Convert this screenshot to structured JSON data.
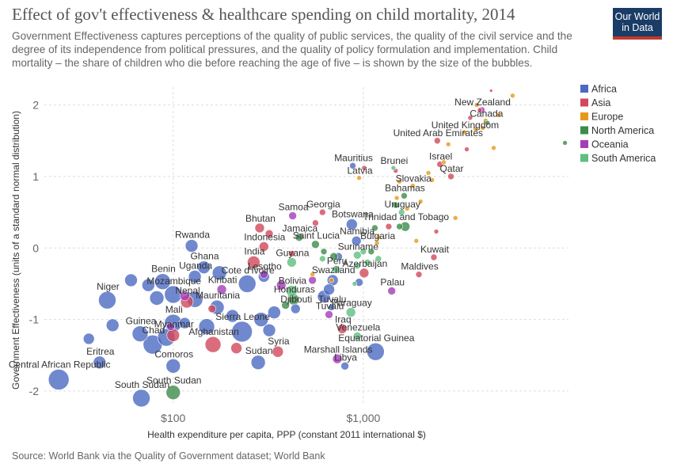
{
  "title": "Effect of gov't effectiveness & healthcare spending on child mortality, 2014",
  "subtitle": "Government Effectiveness captures perceptions of the quality of public services, the quality of the civil service and the degree of its independence from political pressures, and the quality of policy formulation and implementation. Child mortality – the share of children who die before reaching the age of five – is shown by the size of the bubbles.",
  "logo": {
    "line1": "Our World",
    "line2": "in Data"
  },
  "source": "Source: World Bank via the Quality of Government dataset; World Bank",
  "chart_data": {
    "type": "scatter",
    "title": "Effect of gov't effectiveness & healthcare spending on child mortality, 2014",
    "xlabel": "Health expenditure per capita, PPP (constant 2011 international $)",
    "ylabel": "Government Effectiveness (units of a standard normal distribution)",
    "x_scale": "log",
    "xlim": [
      21,
      12000
    ],
    "ylim": [
      -2.2,
      2.25
    ],
    "x_ticks": [
      {
        "value": 100,
        "label": "$100"
      },
      {
        "value": 1000,
        "label": "$1,000"
      }
    ],
    "y_ticks": [
      {
        "value": 2,
        "label": "2"
      },
      {
        "value": 1,
        "label": "1"
      },
      {
        "value": 0,
        "label": "0"
      },
      {
        "value": -1,
        "label": "-1"
      },
      {
        "value": -2,
        "label": "-2"
      }
    ],
    "grid": true,
    "legend_position": "right",
    "colors": {
      "Africa": "#4c6ac2",
      "Asia": "#d1495b",
      "Europe": "#e69a1a",
      "North America": "#3d8b4b",
      "Oceania": "#a43cb8",
      "South America": "#5fbf7f"
    },
    "series": [
      {
        "name": "Africa",
        "points": [
          {
            "label": "Central African Republic",
            "x": 25,
            "y": -1.84,
            "size": 13
          },
          {
            "label": "South Sudan",
            "x": 68,
            "y": -2.1,
            "size": 11
          },
          {
            "label": "Eritrea",
            "x": 41,
            "y": -1.6,
            "size": 8
          },
          {
            "label": "Comoros",
            "x": 100,
            "y": -1.65,
            "size": 9
          },
          {
            "label": "Chad",
            "x": 78,
            "y": -1.35,
            "size": 12
          },
          {
            "label": "Guinea",
            "x": 67,
            "y": -1.2,
            "size": 10
          },
          {
            "label": "Mali",
            "x": 100,
            "y": -1.05,
            "size": 11
          },
          {
            "label": "Niger",
            "x": 45,
            "y": -0.73,
            "size": 11
          },
          {
            "label": "Benin",
            "x": 88,
            "y": -0.47,
            "size": 10
          },
          {
            "label": "Mozambique",
            "x": 100,
            "y": -0.65,
            "size": 11
          },
          {
            "label": "Rwanda",
            "x": 125,
            "y": 0.03,
            "size": 8
          },
          {
            "label": "Ghana",
            "x": 145,
            "y": -0.27,
            "size": 8
          },
          {
            "label": "Uganda",
            "x": 130,
            "y": -0.4,
            "size": 8
          },
          {
            "label": "Mauritania",
            "x": 170,
            "y": -0.83,
            "size": 9
          },
          {
            "label": "Sierra Leone",
            "x": 230,
            "y": -1.17,
            "size": 13
          },
          {
            "label": "Sudan",
            "x": 280,
            "y": -1.6,
            "size": 9
          },
          {
            "label": "Cote d'Ivoire",
            "x": 245,
            "y": -0.5,
            "size": 11
          },
          {
            "label": "Lesotho",
            "x": 300,
            "y": -0.4,
            "size": 7
          },
          {
            "label": "Djibouti",
            "x": 440,
            "y": -0.85,
            "size": 6
          },
          {
            "label": "Swaziland",
            "x": 690,
            "y": -0.45,
            "size": 7
          },
          {
            "label": "Tuvalu",
            "x": 680,
            "y": -0.83,
            "size": 4
          },
          {
            "label": "Equatorial Guinea",
            "x": 1160,
            "y": -1.45,
            "size": 11
          },
          {
            "label": "Libya",
            "x": 800,
            "y": -1.65,
            "size": 5
          },
          {
            "label": "Botswana",
            "x": 870,
            "y": 0.33,
            "size": 7
          },
          {
            "label": "Namibia",
            "x": 920,
            "y": 0.1,
            "size": 6
          },
          {
            "label": "Mauritius",
            "x": 880,
            "y": 1.15,
            "size": 4
          },
          {
            "label": "",
            "x": 36,
            "y": -1.27,
            "size": 7
          },
          {
            "label": "",
            "x": 48,
            "y": -1.08,
            "size": 8
          },
          {
            "label": "",
            "x": 60,
            "y": -0.45,
            "size": 8
          },
          {
            "label": "",
            "x": 74,
            "y": -0.52,
            "size": 8
          },
          {
            "label": "",
            "x": 82,
            "y": -0.7,
            "size": 9
          },
          {
            "label": "",
            "x": 92,
            "y": -1.25,
            "size": 11
          },
          {
            "label": "",
            "x": 115,
            "y": -1.05,
            "size": 7
          },
          {
            "label": "",
            "x": 150,
            "y": -1.1,
            "size": 10
          },
          {
            "label": "",
            "x": 205,
            "y": -0.95,
            "size": 8
          },
          {
            "label": "",
            "x": 320,
            "y": -1.15,
            "size": 8
          },
          {
            "label": "",
            "x": 130,
            "y": -0.72,
            "size": 10
          },
          {
            "label": "",
            "x": 175,
            "y": -0.35,
            "size": 9
          },
          {
            "label": "",
            "x": 290,
            "y": -1.0,
            "size": 9
          },
          {
            "label": "",
            "x": 340,
            "y": -0.9,
            "size": 8
          },
          {
            "label": "",
            "x": 620,
            "y": -0.68,
            "size": 8
          },
          {
            "label": "",
            "x": 660,
            "y": -0.58,
            "size": 7
          },
          {
            "label": "",
            "x": 740,
            "y": -0.12,
            "size": 5
          },
          {
            "label": "",
            "x": 950,
            "y": -0.48,
            "size": 5
          }
        ]
      },
      {
        "name": "Asia",
        "points": [
          {
            "label": "Myanmar",
            "x": 100,
            "y": -1.22,
            "size": 8
          },
          {
            "label": "Nepal",
            "x": 118,
            "y": -0.75,
            "size": 8
          },
          {
            "label": "Afghanistan",
            "x": 162,
            "y": -1.35,
            "size": 10
          },
          {
            "label": "Syria",
            "x": 355,
            "y": -1.45,
            "size": 7
          },
          {
            "label": "Iraq",
            "x": 775,
            "y": -1.13,
            "size": 6
          },
          {
            "label": "India",
            "x": 265,
            "y": -0.2,
            "size": 8
          },
          {
            "label": "Bhutan",
            "x": 285,
            "y": 0.28,
            "size": 6
          },
          {
            "label": "Indonesia",
            "x": 300,
            "y": 0.02,
            "size": 6
          },
          {
            "label": "Georgia",
            "x": 610,
            "y": 0.5,
            "size": 4
          },
          {
            "label": "Azerbaijan",
            "x": 1010,
            "y": -0.35,
            "size": 6
          },
          {
            "label": "Kuwait",
            "x": 2350,
            "y": -0.13,
            "size": 4
          },
          {
            "label": "Maldives",
            "x": 1960,
            "y": -0.37,
            "size": 4
          },
          {
            "label": "Qatar",
            "x": 2890,
            "y": 1.0,
            "size": 4
          },
          {
            "label": "Israel",
            "x": 2530,
            "y": 1.17,
            "size": 4
          },
          {
            "label": "United Arab Emirates",
            "x": 2450,
            "y": 1.5,
            "size": 4
          },
          {
            "label": "",
            "x": 215,
            "y": -1.4,
            "size": 7
          },
          {
            "label": "",
            "x": 160,
            "y": -0.85,
            "size": 5
          },
          {
            "label": "",
            "x": 320,
            "y": 0.2,
            "size": 5
          },
          {
            "label": "",
            "x": 420,
            "y": -0.08,
            "size": 4
          },
          {
            "label": "",
            "x": 560,
            "y": 0.35,
            "size": 4
          },
          {
            "label": "",
            "x": 1360,
            "y": 0.3,
            "size": 4
          },
          {
            "label": "",
            "x": 2420,
            "y": 0.23,
            "size": 3
          },
          {
            "label": "",
            "x": 1010,
            "y": 1.12,
            "size": 3
          },
          {
            "label": "",
            "x": 1480,
            "y": 1.08,
            "size": 3
          },
          {
            "label": "",
            "x": 3650,
            "y": 1.82,
            "size": 3
          },
          {
            "label": "",
            "x": 4100,
            "y": 1.93,
            "size": 3
          },
          {
            "label": "",
            "x": 4700,
            "y": 2.2,
            "size": 2
          },
          {
            "label": "",
            "x": 3500,
            "y": 1.38,
            "size": 3
          }
        ]
      },
      {
        "name": "Europe",
        "points": [
          {
            "label": "Latvia",
            "x": 950,
            "y": 0.98,
            "size": 3
          },
          {
            "label": "Slovakia",
            "x": 1820,
            "y": 0.87,
            "size": 3
          },
          {
            "label": "Bulgaria",
            "x": 1180,
            "y": 0.07,
            "size": 3
          },
          {
            "label": "Canada",
            "x": 4400,
            "y": 1.78,
            "size": 3
          },
          {
            "label": "United Kingdom",
            "x": 3400,
            "y": 1.62,
            "size": 3
          },
          {
            "label": "",
            "x": 1200,
            "y": 0.15,
            "size": 3
          },
          {
            "label": "",
            "x": 1500,
            "y": 0.7,
            "size": 3
          },
          {
            "label": "",
            "x": 1700,
            "y": 0.55,
            "size": 3
          },
          {
            "label": "",
            "x": 2000,
            "y": 0.65,
            "size": 3
          },
          {
            "label": "",
            "x": 2200,
            "y": 1.05,
            "size": 3
          },
          {
            "label": "",
            "x": 2650,
            "y": 1.2,
            "size": 3
          },
          {
            "label": "",
            "x": 2800,
            "y": 1.45,
            "size": 3
          },
          {
            "label": "",
            "x": 3050,
            "y": 0.42,
            "size": 3
          },
          {
            "label": "",
            "x": 3900,
            "y": 1.66,
            "size": 3
          },
          {
            "label": "",
            "x": 4250,
            "y": 1.68,
            "size": 3
          },
          {
            "label": "",
            "x": 4850,
            "y": 1.4,
            "size": 3
          },
          {
            "label": "",
            "x": 5150,
            "y": 1.86,
            "size": 3
          },
          {
            "label": "",
            "x": 6100,
            "y": 2.13,
            "size": 3
          },
          {
            "label": "",
            "x": 3950,
            "y": 2.0,
            "size": 3
          },
          {
            "label": "",
            "x": 1900,
            "y": 0.1,
            "size": 3
          },
          {
            "label": "",
            "x": 1550,
            "y": 0.93,
            "size": 3
          },
          {
            "label": "",
            "x": 2300,
            "y": 0.95,
            "size": 3
          },
          {
            "label": "",
            "x": 540,
            "y": -0.37,
            "size": 3
          },
          {
            "label": "",
            "x": 680,
            "y": -0.45,
            "size": 3
          }
        ]
      },
      {
        "name": "North America",
        "points": [
          {
            "label": "Bahamas",
            "x": 1640,
            "y": 0.73,
            "size": 4
          },
          {
            "label": "Trinidad and Tobago",
            "x": 1660,
            "y": 0.3,
            "size": 6
          },
          {
            "label": "Jamaica",
            "x": 460,
            "y": 0.15,
            "size": 5
          },
          {
            "label": "Saint Lucia",
            "x": 560,
            "y": 0.05,
            "size": 5
          },
          {
            "label": "Honduras",
            "x": 430,
            "y": -0.72,
            "size": 7
          },
          {
            "label": "South Sudan",
            "x": 100,
            "y": -2.02,
            "size": 9
          },
          {
            "label": "",
            "x": 11500,
            "y": 1.47,
            "size": 3
          },
          {
            "label": "",
            "x": 4500,
            "y": 1.75,
            "size": 3
          },
          {
            "label": "",
            "x": 620,
            "y": -0.05,
            "size": 4
          },
          {
            "label": "",
            "x": 700,
            "y": -0.12,
            "size": 5
          },
          {
            "label": "",
            "x": 1100,
            "y": -0.05,
            "size": 4
          },
          {
            "label": "",
            "x": 1150,
            "y": 0.28,
            "size": 4
          },
          {
            "label": "",
            "x": 1550,
            "y": 0.3,
            "size": 4
          },
          {
            "label": "",
            "x": 1480,
            "y": 0.6,
            "size": 4
          },
          {
            "label": "",
            "x": 390,
            "y": -0.8,
            "size": 5
          }
        ]
      },
      {
        "name": "Oceania",
        "points": [
          {
            "label": "Kiribati",
            "x": 180,
            "y": -0.58,
            "size": 6
          },
          {
            "label": "Samoa",
            "x": 425,
            "y": 0.45,
            "size": 5
          },
          {
            "label": "Palau",
            "x": 1410,
            "y": -0.6,
            "size": 5
          },
          {
            "label": "Marshall Islands",
            "x": 730,
            "y": -1.55,
            "size": 6
          },
          {
            "label": "Tuvalu",
            "x": 660,
            "y": -0.93,
            "size": 5
          },
          {
            "label": "New Zealand",
            "x": 4200,
            "y": 1.93,
            "size": 4
          },
          {
            "label": "",
            "x": 115,
            "y": -0.67,
            "size": 6
          },
          {
            "label": "",
            "x": 97,
            "y": -1.1,
            "size": 5
          },
          {
            "label": "",
            "x": 300,
            "y": -0.37,
            "size": 5
          },
          {
            "label": "",
            "x": 370,
            "y": -0.52,
            "size": 6
          },
          {
            "label": "",
            "x": 540,
            "y": -0.45,
            "size": 5
          }
        ]
      },
      {
        "name": "South America",
        "points": [
          {
            "label": "Guyana",
            "x": 420,
            "y": -0.2,
            "size": 6
          },
          {
            "label": "Bolivia",
            "x": 420,
            "y": -0.6,
            "size": 7
          },
          {
            "label": "Peru",
            "x": 720,
            "y": -0.3,
            "size": 5
          },
          {
            "label": "Suriname",
            "x": 930,
            "y": -0.1,
            "size": 5
          },
          {
            "label": "Uruguay",
            "x": 1590,
            "y": 0.5,
            "size": 4
          },
          {
            "label": "Paraguay",
            "x": 860,
            "y": -0.9,
            "size": 6
          },
          {
            "label": "Venezuela",
            "x": 930,
            "y": -1.23,
            "size": 5
          },
          {
            "label": "Brunei",
            "x": 1440,
            "y": 1.12,
            "size": 3
          },
          {
            "label": "",
            "x": 610,
            "y": -0.15,
            "size": 4
          },
          {
            "label": "",
            "x": 930,
            "y": -0.25,
            "size": 4
          },
          {
            "label": "",
            "x": 1050,
            "y": -0.2,
            "size": 4
          },
          {
            "label": "",
            "x": 1200,
            "y": -0.15,
            "size": 4
          },
          {
            "label": "",
            "x": 900,
            "y": -0.5,
            "size": 3
          },
          {
            "label": "",
            "x": 1000,
            "y": -0.05,
            "size": 4
          }
        ]
      }
    ]
  }
}
